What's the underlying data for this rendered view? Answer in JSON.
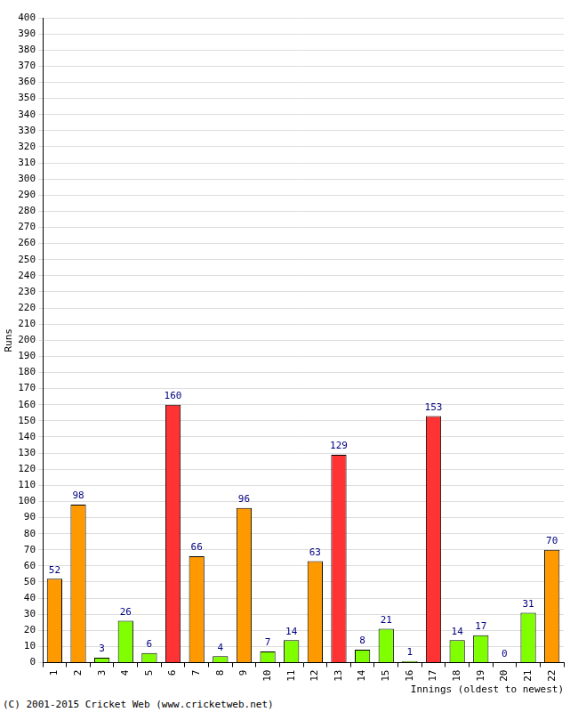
{
  "chart_data": {
    "type": "bar",
    "categories": [
      "1",
      "2",
      "3",
      "4",
      "5",
      "6",
      "7",
      "8",
      "9",
      "10",
      "11",
      "12",
      "13",
      "14",
      "15",
      "16",
      "17",
      "18",
      "19",
      "20",
      "21",
      "22"
    ],
    "values": [
      52,
      98,
      3,
      26,
      6,
      160,
      66,
      4,
      96,
      7,
      14,
      63,
      129,
      8,
      21,
      1,
      153,
      14,
      17,
      0,
      31,
      70
    ],
    "colors": [
      "#ff9900",
      "#ff9900",
      "#80ff00",
      "#80ff00",
      "#80ff00",
      "#ff3333",
      "#ff9900",
      "#80ff00",
      "#ff9900",
      "#80ff00",
      "#80ff00",
      "#ff9900",
      "#ff3333",
      "#80ff00",
      "#80ff00",
      "#80ff00",
      "#ff3333",
      "#80ff00",
      "#80ff00",
      "#80ff00",
      "#80ff00",
      "#ff9900"
    ],
    "x_label": "Innings (oldest to newest)",
    "y_label": "Runs",
    "ylim": [
      0,
      400
    ],
    "yticks": [
      0,
      10,
      20,
      30,
      40,
      50,
      60,
      70,
      80,
      90,
      100,
      110,
      120,
      130,
      140,
      150,
      160,
      170,
      180,
      190,
      200,
      210,
      220,
      230,
      240,
      250,
      260,
      270,
      280,
      290,
      300,
      310,
      320,
      330,
      340,
      350,
      360,
      370,
      380,
      390,
      400
    ],
    "grid": true,
    "data_labels": true,
    "annotations": [
      "(C) 2001-2015 Cricket Web (www.cricketweb.net)"
    ]
  }
}
